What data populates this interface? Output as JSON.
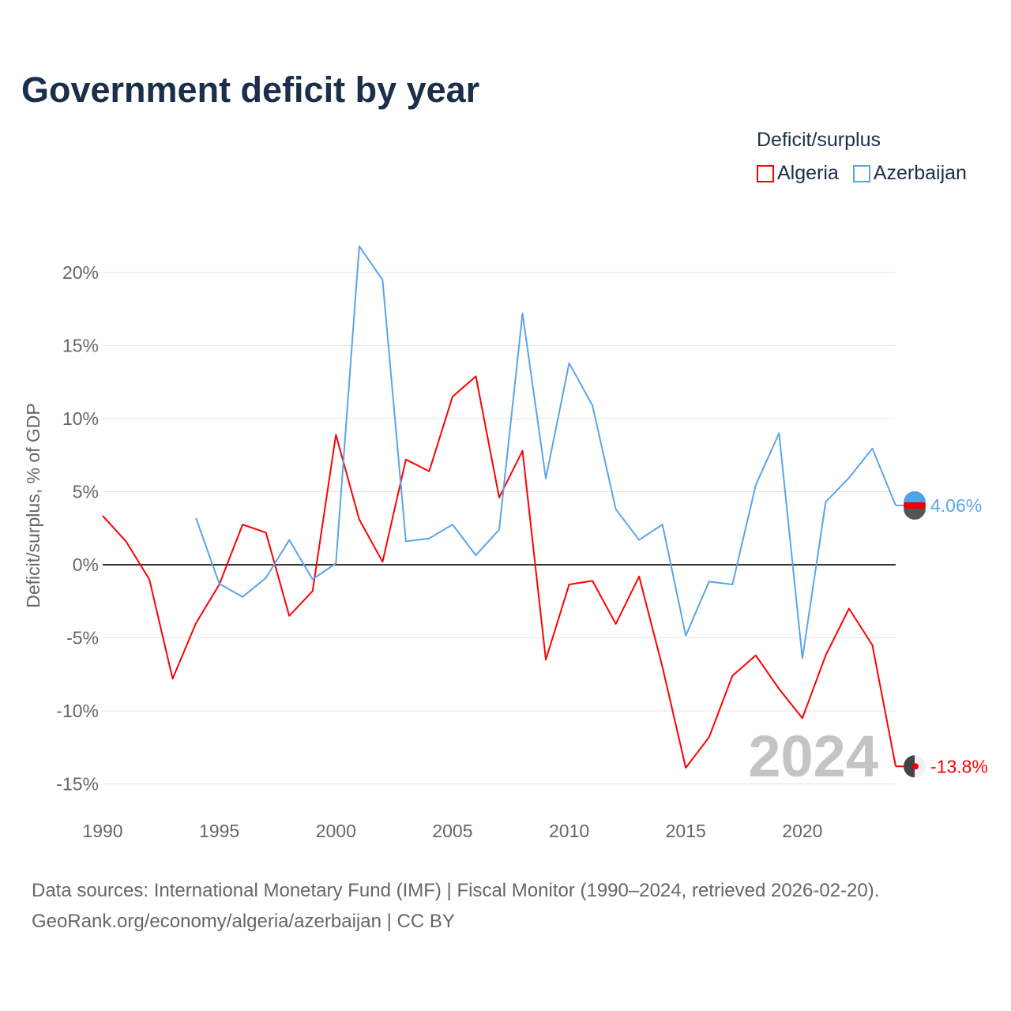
{
  "title": "Government deficit by year",
  "legend": {
    "title": "Deficit/surplus",
    "items": [
      {
        "label": "Algeria",
        "color": "#ff0000"
      },
      {
        "label": "Azerbaijan",
        "color": "#5aa5e8"
      }
    ]
  },
  "watermark_year": "2024",
  "source_lines": [
    "Data sources: International Monetary Fund (IMF) | Fiscal Monitor (1990–2024, retrieved 2026-02-20).",
    "GeoRank.org/economy/algeria/azerbaijan | CC BY"
  ],
  "chart_data": {
    "type": "line",
    "title": "Government deficit by year",
    "xlabel": "",
    "ylabel": "Deficit/surplus, % of GDP",
    "xlim": [
      1990,
      2024
    ],
    "ylim": [
      -16,
      22
    ],
    "x_ticks": [
      1990,
      1995,
      2000,
      2005,
      2010,
      2015,
      2020
    ],
    "x_tick_labels": [
      "1990",
      "1995",
      "2000",
      "2005",
      "2010",
      "2015",
      "2020"
    ],
    "y_ticks": [
      -15,
      -10,
      -5,
      0,
      5,
      10,
      15,
      20
    ],
    "y_tick_labels": [
      "-15%",
      "-10%",
      "-5%",
      "0%",
      "5%",
      "10%",
      "15%",
      "20%"
    ],
    "grid": true,
    "legend_position": "top-right",
    "series": [
      {
        "name": "Algeria",
        "color": "#ff0000",
        "end_label": "-13.8%",
        "x": [
          1990,
          1991,
          1992,
          1993,
          1994,
          1995,
          1996,
          1997,
          1998,
          1999,
          2000,
          2001,
          2002,
          2003,
          2004,
          2005,
          2006,
          2007,
          2008,
          2009,
          2010,
          2011,
          2012,
          2013,
          2014,
          2015,
          2016,
          2017,
          2018,
          2019,
          2020,
          2021,
          2022,
          2023,
          2024
        ],
        "values": [
          3.35,
          1.6,
          -1.0,
          -7.8,
          -4.0,
          -1.35,
          2.75,
          2.2,
          -3.5,
          -1.8,
          8.9,
          3.1,
          0.2,
          7.2,
          6.4,
          11.5,
          12.9,
          4.6,
          7.8,
          -6.5,
          -1.35,
          -1.1,
          -4.05,
          -0.8,
          -7.0,
          -13.9,
          -11.8,
          -7.6,
          -6.2,
          -8.5,
          -10.5,
          -6.2,
          -3.0,
          -5.5,
          -13.8
        ]
      },
      {
        "name": "Azerbaijan",
        "color": "#5aa5e8",
        "end_label": "4.06%",
        "x": [
          1994,
          1995,
          1996,
          1997,
          1998,
          1999,
          2000,
          2001,
          2002,
          2003,
          2004,
          2005,
          2006,
          2007,
          2008,
          2009,
          2010,
          2011,
          2012,
          2013,
          2014,
          2015,
          2016,
          2017,
          2018,
          2019,
          2020,
          2021,
          2022,
          2023,
          2024
        ],
        "values": [
          3.2,
          -1.3,
          -2.2,
          -0.9,
          1.7,
          -1.0,
          0.1,
          21.8,
          19.5,
          1.6,
          1.8,
          2.75,
          0.65,
          2.4,
          17.2,
          5.9,
          13.8,
          10.9,
          3.8,
          1.7,
          2.75,
          -4.85,
          -1.15,
          -1.35,
          5.45,
          9.0,
          -6.4,
          4.3,
          5.95,
          7.95,
          4.06
        ]
      }
    ]
  }
}
